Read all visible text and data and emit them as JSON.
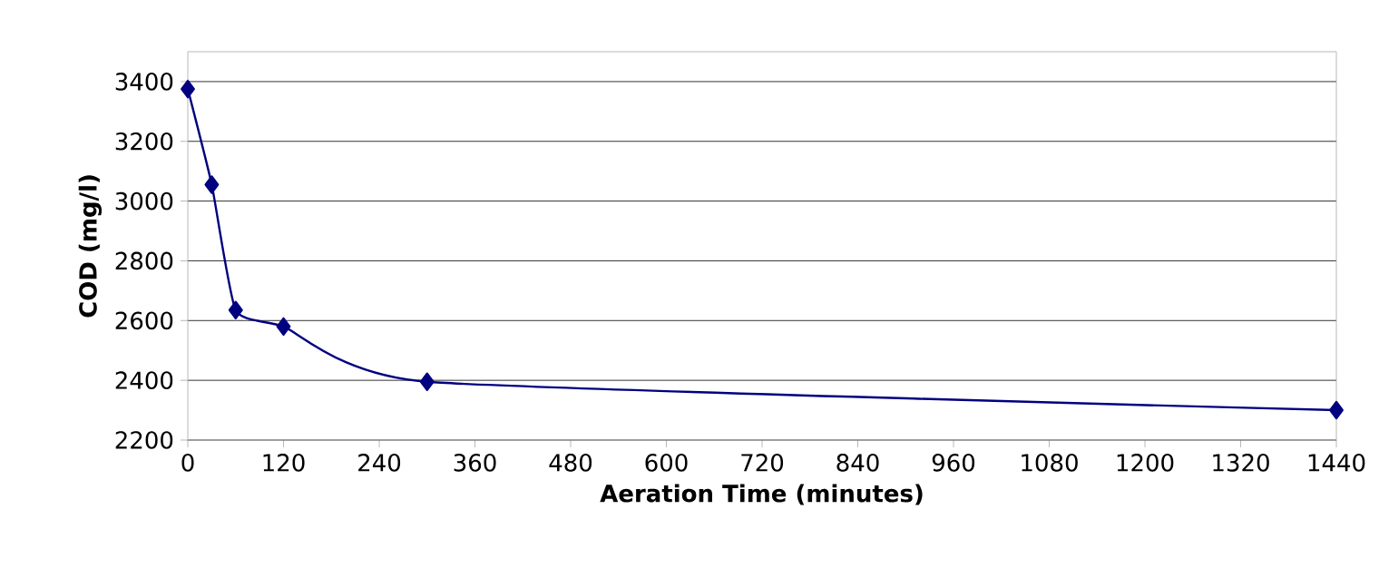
{
  "chart_data": {
    "type": "line",
    "xlabel": "Aeration Time (minutes)",
    "ylabel": "COD (mg/l)",
    "x": [
      0,
      30,
      60,
      120,
      300,
      1440
    ],
    "series": [
      {
        "color": "#000080",
        "values": [
          3375,
          3055,
          2635,
          2580,
          2395,
          2300
        ]
      }
    ],
    "xlim": [
      0,
      1440
    ],
    "ylim": [
      2200,
      3500
    ],
    "xticks": [
      0,
      120,
      240,
      360,
      480,
      600,
      720,
      840,
      960,
      1080,
      1200,
      1320,
      1440
    ],
    "yticks": [
      2200,
      2400,
      2600,
      2800,
      3000,
      3200,
      3400
    ],
    "grid": "y",
    "marker": "diamond",
    "line_style": "solid"
  }
}
